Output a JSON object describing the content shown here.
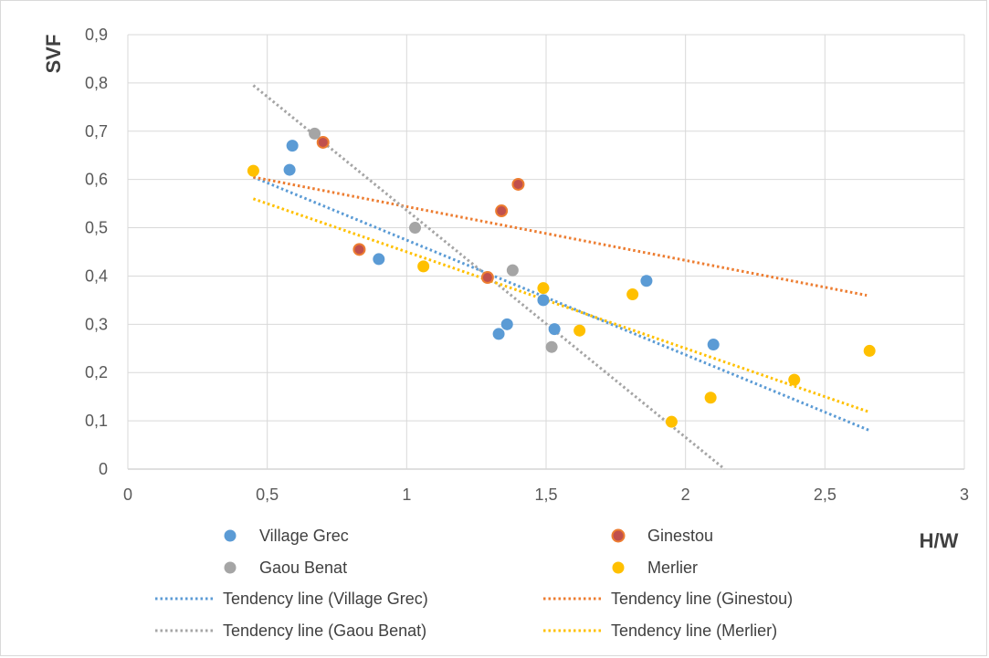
{
  "chart_data": {
    "type": "scatter",
    "title": "",
    "xlabel": "H/W",
    "ylabel": "SVF",
    "xlim": [
      0,
      3
    ],
    "ylim": [
      0,
      0.9
    ],
    "x_ticks": [
      "0",
      "0,5",
      "1",
      "1,5",
      "2",
      "2,5",
      "3"
    ],
    "y_ticks": [
      "0",
      "0,1",
      "0,2",
      "0,3",
      "0,4",
      "0,5",
      "0,6",
      "0,7",
      "0,8",
      "0,9"
    ],
    "grid": true,
    "legend_position": "bottom",
    "series": [
      {
        "name": "Village Grec",
        "color": "#5b9bd5",
        "points": [
          [
            0.58,
            0.62
          ],
          [
            0.59,
            0.67
          ],
          [
            0.9,
            0.435
          ],
          [
            1.33,
            0.28
          ],
          [
            1.36,
            0.3
          ],
          [
            1.49,
            0.35
          ],
          [
            1.53,
            0.29
          ],
          [
            1.86,
            0.39
          ],
          [
            2.1,
            0.258
          ]
        ]
      },
      {
        "name": "Ginestou",
        "color": "#ed7d31",
        "points": [
          [
            0.7,
            0.677
          ],
          [
            0.83,
            0.455
          ],
          [
            1.29,
            0.397
          ],
          [
            1.34,
            0.535
          ],
          [
            1.4,
            0.59
          ]
        ]
      },
      {
        "name": "Gaou Benat",
        "color": "#a5a5a5",
        "points": [
          [
            0.67,
            0.695
          ],
          [
            1.03,
            0.5
          ],
          [
            1.38,
            0.412
          ],
          [
            1.52,
            0.253
          ]
        ]
      },
      {
        "name": "Merlier",
        "color": "#ffc000",
        "points": [
          [
            0.45,
            0.618
          ],
          [
            1.06,
            0.42
          ],
          [
            1.49,
            0.375
          ],
          [
            1.62,
            0.287
          ],
          [
            1.81,
            0.362
          ],
          [
            1.95,
            0.098
          ],
          [
            2.09,
            0.148
          ],
          [
            2.39,
            0.185
          ],
          [
            2.66,
            0.245
          ]
        ]
      }
    ],
    "trendlines": [
      {
        "name": "Tendency line (Village Grec)",
        "color": "#5b9bd5",
        "from": [
          0.45,
          0.605
        ],
        "to": [
          2.66,
          0.08
        ]
      },
      {
        "name": "Tendency line (Ginestou)",
        "color": "#ed7d31",
        "from": [
          0.45,
          0.605
        ],
        "to": [
          2.65,
          0.36
        ]
      },
      {
        "name": "Tendency line (Gaou Benat)",
        "color": "#a5a5a5",
        "from": [
          0.45,
          0.795
        ],
        "to": [
          2.14,
          0.0
        ]
      },
      {
        "name": "Tendency line (Merlier)",
        "color": "#ffc000",
        "from": [
          0.45,
          0.56
        ],
        "to": [
          2.66,
          0.118
        ]
      }
    ]
  }
}
